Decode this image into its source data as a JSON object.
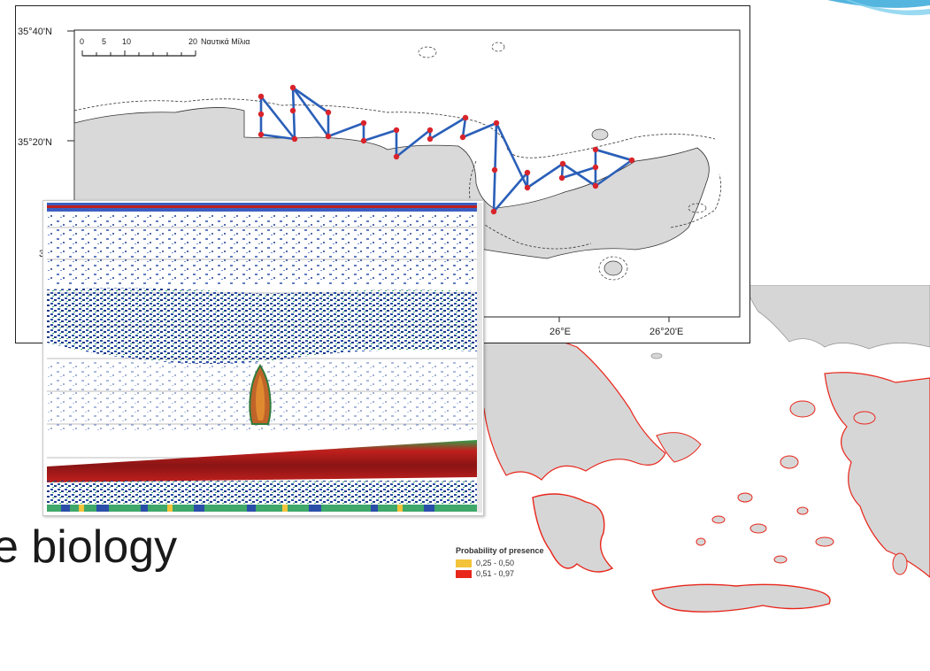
{
  "slide": {
    "partial_title": "e biology"
  },
  "survey_map": {
    "lat_labels": [
      "35°40'N",
      "35°20'N",
      "3"
    ],
    "lon_labels": [
      "26°E",
      "26°20'E"
    ],
    "scale_numbers": [
      "0",
      "5",
      "10",
      "20"
    ],
    "scale_unit": "Ναυτικά Μίλια"
  },
  "habitat_map": {
    "legend_title": "Probability of presence",
    "legend_items": [
      {
        "label": "0,25 - 0,50",
        "color": "#f3c33a"
      },
      {
        "label": "0,51 - 0,97",
        "color": "#e8261b"
      }
    ]
  },
  "colors": {
    "land": "#d9d9d9",
    "track": "#2a5fb8",
    "station": "#d9232b",
    "echo_blue": "#2b4fa8",
    "echo_seabed": "#c0201e",
    "accent": "#36a8d8"
  },
  "icons": [
    "corner-swoosh-decoration",
    "north-scale-bar",
    "station-star-marker"
  ]
}
